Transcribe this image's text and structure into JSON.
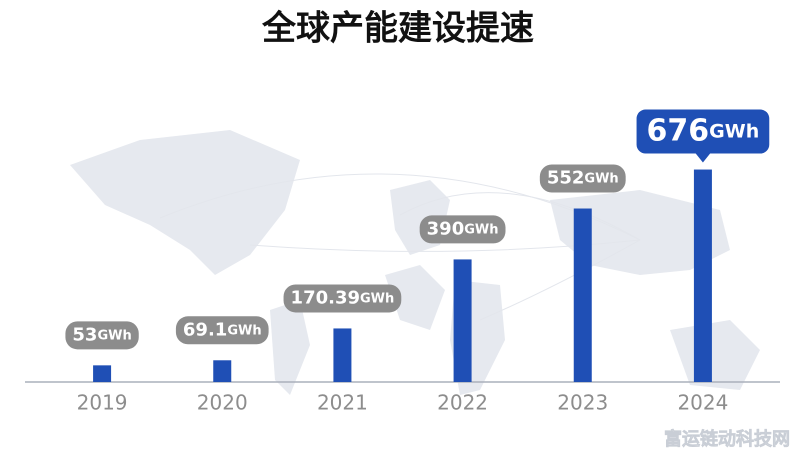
{
  "chart_data": {
    "type": "bar",
    "title": "全球产能建设提速",
    "categories": [
      "2019",
      "2020",
      "2021",
      "2022",
      "2023",
      "2024"
    ],
    "values": [
      53,
      69.1,
      170.39,
      390,
      552,
      676
    ],
    "unit": "GWh",
    "color": "#1f4fb5",
    "ylim": [
      0,
      700
    ]
  },
  "watermark": "富运链动科技网"
}
